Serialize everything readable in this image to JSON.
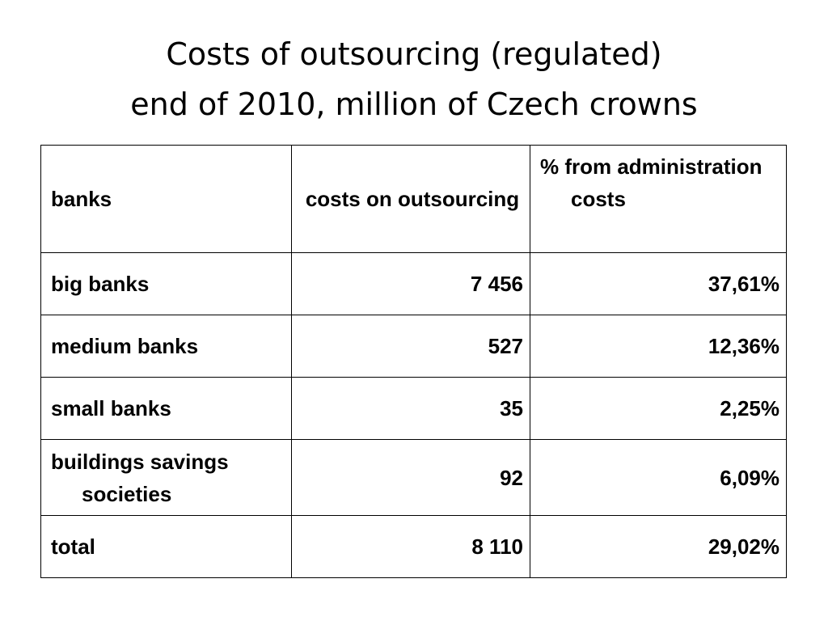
{
  "slide": {
    "title_line1": "Costs of outsourcing (regulated)",
    "title_line2": "end of 2010, million of Czech crowns"
  },
  "table": {
    "headers": [
      "banks",
      "costs on outsourcing",
      "% from administration costs"
    ],
    "rows": [
      {
        "bank": "big banks",
        "costs": "7 456",
        "percent": "37,61%"
      },
      {
        "bank": "medium banks",
        "costs": "527",
        "percent": "12,36%"
      },
      {
        "bank": "small banks",
        "costs": "35",
        "percent": "2,25%"
      },
      {
        "bank": "buildings savings societies",
        "costs": "92",
        "percent": "6,09%"
      },
      {
        "bank": "total",
        "costs": "8 110",
        "percent": "29,02%"
      }
    ]
  }
}
